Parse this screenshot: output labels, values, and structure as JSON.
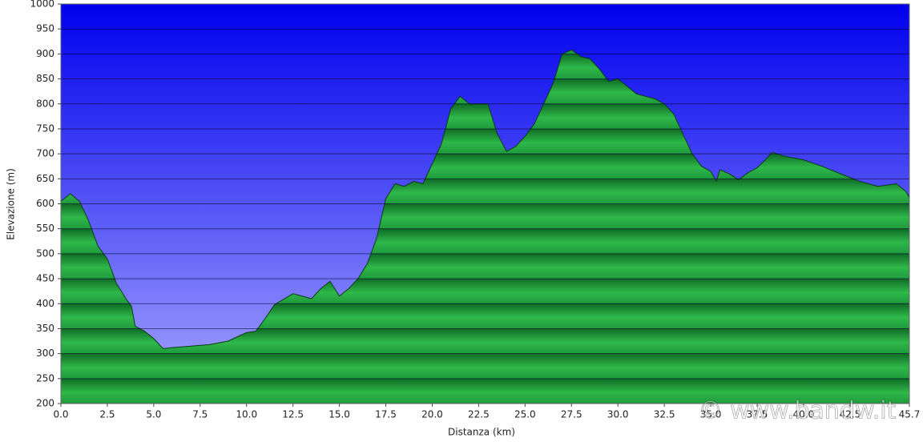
{
  "chart_data": {
    "type": "area",
    "xlabel": "Distanza  (km)",
    "ylabel": "Elevazione (m)",
    "watermark": "© www.bandw.it",
    "color": "#1f9a3c",
    "grid": true,
    "x": [
      0,
      0.5,
      1.0,
      1.5,
      2.0,
      2.5,
      3.0,
      3.5,
      3.8,
      4.0,
      4.5,
      5.0,
      5.5,
      6.0,
      7.0,
      8.0,
      9.0,
      10.0,
      10.5,
      11.0,
      11.5,
      12.5,
      13.5,
      14.0,
      14.5,
      15.0,
      15.5,
      16.0,
      16.5,
      17.0,
      17.5,
      18.0,
      18.5,
      19.0,
      19.5,
      20.0,
      20.5,
      21.0,
      21.5,
      22.0,
      22.5,
      23.0,
      23.5,
      24.0,
      24.5,
      25.0,
      25.5,
      26.0,
      26.5,
      27.0,
      27.5,
      28.0,
      28.5,
      29.0,
      29.5,
      30.0,
      30.5,
      31.0,
      32.0,
      32.5,
      33.0,
      33.5,
      34.0,
      34.5,
      35.0,
      35.3,
      35.5,
      36.0,
      36.5,
      37.0,
      37.5,
      38.0,
      38.3,
      39.0,
      40.0,
      41.0,
      42.0,
      43.0,
      44.0,
      45.0,
      45.5,
      45.7
    ],
    "values": [
      605,
      620,
      605,
      565,
      515,
      490,
      440,
      410,
      395,
      355,
      345,
      330,
      310,
      312,
      315,
      318,
      325,
      342,
      345,
      370,
      398,
      420,
      410,
      430,
      445,
      415,
      430,
      450,
      480,
      530,
      610,
      640,
      635,
      645,
      640,
      680,
      720,
      790,
      815,
      800,
      800,
      800,
      740,
      705,
      715,
      735,
      760,
      800,
      840,
      900,
      908,
      895,
      890,
      870,
      845,
      850,
      835,
      820,
      810,
      800,
      780,
      740,
      700,
      675,
      665,
      645,
      668,
      660,
      648,
      662,
      672,
      690,
      703,
      695,
      688,
      675,
      660,
      645,
      635,
      640,
      625,
      612
    ],
    "xlim": [
      0,
      45.7
    ],
    "ylim": [
      200,
      1000
    ],
    "xticks": [
      {
        "value": 0,
        "label": "0.0"
      },
      2.5,
      {
        "value": 5,
        "label": "5.0"
      },
      7.5,
      {
        "value": 10,
        "label": "10.0"
      },
      12.5,
      {
        "value": 15,
        "label": "15.0"
      },
      17.5,
      {
        "value": 20,
        "label": "20.0"
      },
      22.5,
      {
        "value": 25,
        "label": "25.0"
      },
      27.5,
      {
        "value": 30,
        "label": "30.0"
      },
      32.5,
      {
        "value": 35,
        "label": "35.0"
      },
      37.5,
      {
        "value": 40,
        "label": "40.0"
      },
      42.5,
      45.7
    ],
    "yticks": [
      200,
      250,
      300,
      350,
      400,
      450,
      500,
      550,
      600,
      650,
      700,
      750,
      800,
      850,
      900,
      950,
      1000
    ]
  }
}
